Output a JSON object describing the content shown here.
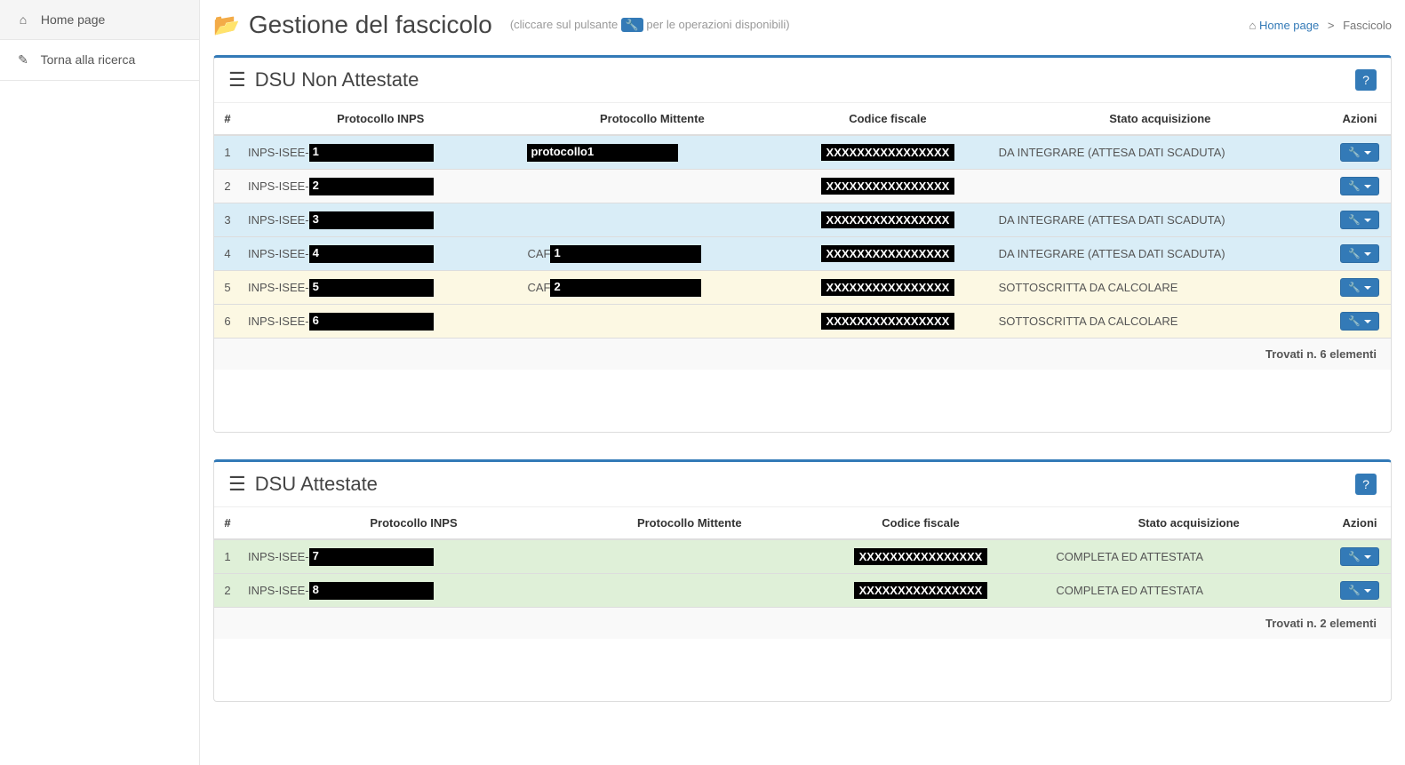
{
  "sidebar": {
    "items": [
      {
        "label": "Home page",
        "icon": "⌂"
      },
      {
        "label": "Torna alla ricerca",
        "icon": "✎"
      }
    ]
  },
  "header": {
    "icon": "📂",
    "title": "Gestione del fascicolo",
    "subtitle_pre": "(cliccare sul pulsante",
    "subtitle_post": "per le operazioni disponibili)",
    "wrench": "🔧"
  },
  "breadcrumb": {
    "home_icon": "⌂",
    "home": "Home page",
    "sep": ">",
    "current": "Fascicolo"
  },
  "columns": {
    "idx": "#",
    "proto_inps": "Protocollo INPS",
    "proto_mitt": "Protocollo Mittente",
    "cf": "Codice fiscale",
    "stato": "Stato acquisizione",
    "azioni": "Azioni"
  },
  "panel1": {
    "title": "DSU Non Attestate",
    "list_icon": "☰",
    "footer": "Trovati n. 6 elementi",
    "rows": [
      {
        "n": "1",
        "prefix": "INPS-ISEE-",
        "redact": "1",
        "mitt_prefix": "",
        "mitt_redact": "protocollo1",
        "cf": "XXXXXXXXXXXXXXXX",
        "stato": "DA INTEGRARE (ATTESA DATI SCADUTA)",
        "cls": "row-blue"
      },
      {
        "n": "2",
        "prefix": "INPS-ISEE-",
        "redact": "2",
        "mitt_prefix": "",
        "mitt_redact": "",
        "cf": "XXXXXXXXXXXXXXXX",
        "stato": "",
        "cls": "row-gray"
      },
      {
        "n": "3",
        "prefix": "INPS-ISEE-",
        "redact": "3",
        "mitt_prefix": "",
        "mitt_redact": "",
        "cf": "XXXXXXXXXXXXXXXX",
        "stato": "DA INTEGRARE (ATTESA DATI SCADUTA)",
        "cls": "row-blue"
      },
      {
        "n": "4",
        "prefix": "INPS-ISEE-",
        "redact": "4",
        "mitt_prefix": "CAF",
        "mitt_redact": "1",
        "cf": "XXXXXXXXXXXXXXXX",
        "stato": "DA INTEGRARE (ATTESA DATI SCADUTA)",
        "cls": "row-blue"
      },
      {
        "n": "5",
        "prefix": "INPS-ISEE-",
        "redact": "5",
        "mitt_prefix": "CAF",
        "mitt_redact": "2",
        "cf": "XXXXXXXXXXXXXXXX",
        "stato": "SOTTOSCRITTA DA CALCOLARE",
        "cls": "row-yellow"
      },
      {
        "n": "6",
        "prefix": "INPS-ISEE-",
        "redact": "6",
        "mitt_prefix": "",
        "mitt_redact": "",
        "cf": "XXXXXXXXXXXXXXXX",
        "stato": "SOTTOSCRITTA DA CALCOLARE",
        "cls": "row-yellow"
      }
    ]
  },
  "panel2": {
    "title": "DSU Attestate",
    "list_icon": "☰",
    "footer": "Trovati n. 2 elementi",
    "rows": [
      {
        "n": "1",
        "prefix": "INPS-ISEE-",
        "redact": "7",
        "mitt_prefix": "",
        "mitt_redact": "",
        "cf": "XXXXXXXXXXXXXXXX",
        "stato": "COMPLETA ED ATTESTATA",
        "cls": "row-green"
      },
      {
        "n": "2",
        "prefix": "INPS-ISEE-",
        "redact": "8",
        "mitt_prefix": "",
        "mitt_redact": "",
        "cf": "XXXXXXXXXXXXXXXX",
        "stato": "COMPLETA ED ATTESTATA",
        "cls": "row-green"
      }
    ]
  },
  "help_label": "?",
  "colors": {
    "primary": "#337ab7",
    "row_blue": "#d9edf7",
    "row_yellow": "#fcf8e3",
    "row_green": "#dff0d8"
  }
}
